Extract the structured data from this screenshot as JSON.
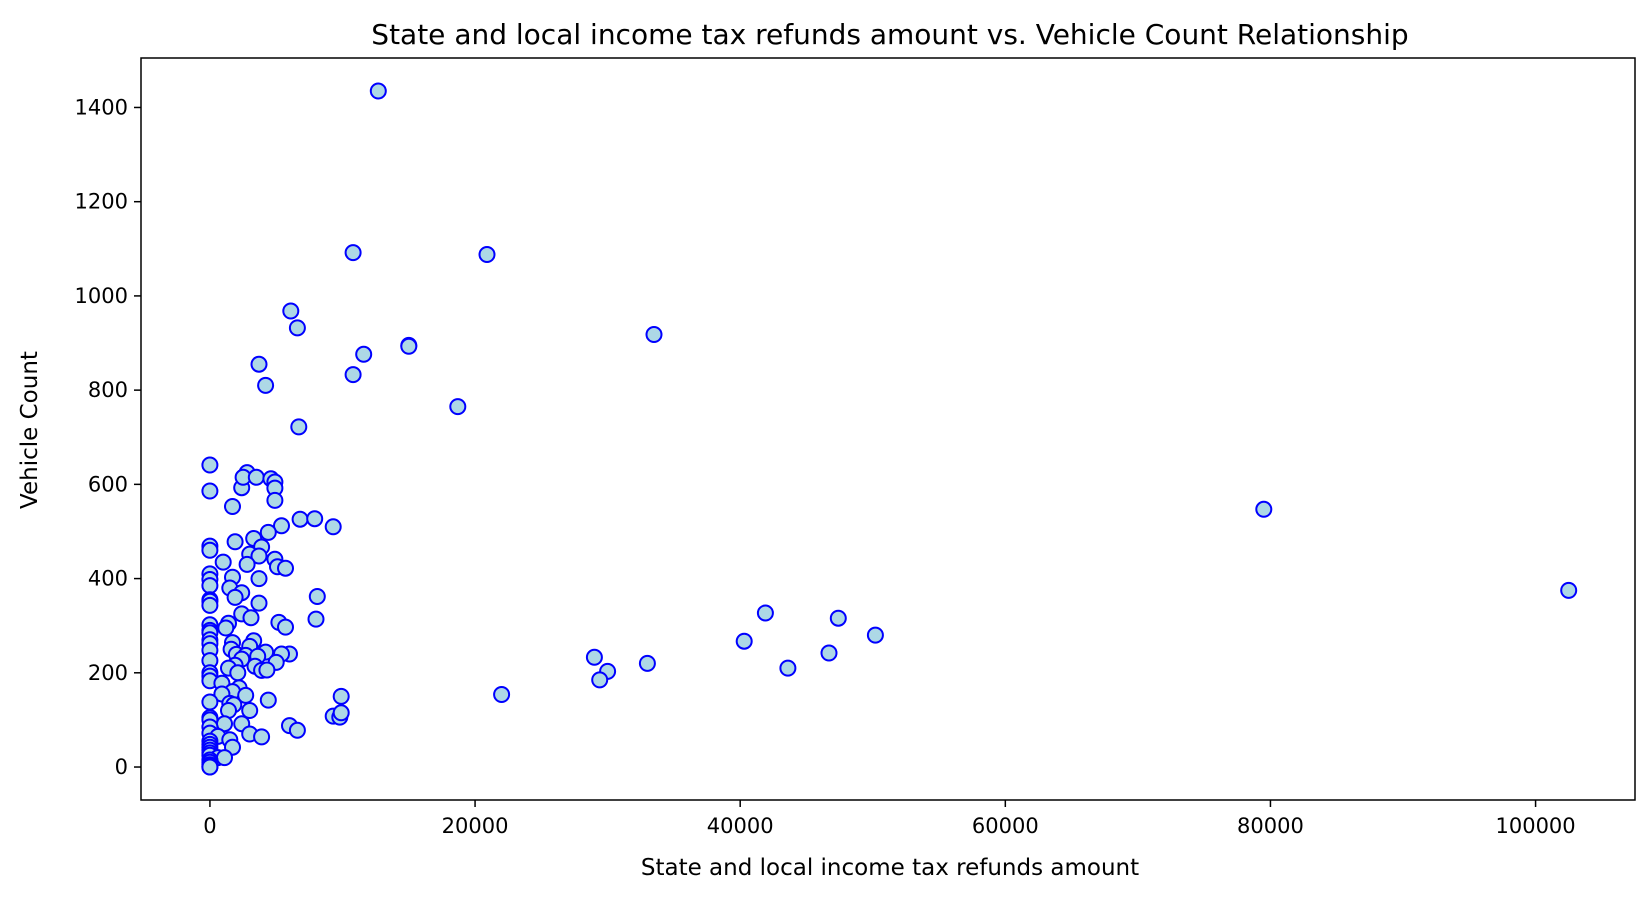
{
  "chart_data": {
    "type": "scatter",
    "title": "State and local income tax refunds amount vs. Vehicle Count Relationship",
    "xlabel": "State and local income tax refunds amount",
    "ylabel": "Vehicle Count",
    "xlim": [
      -5200,
      107500
    ],
    "ylim": [
      -70,
      1505
    ],
    "xticks": [
      0,
      20000,
      40000,
      60000,
      80000,
      100000
    ],
    "yticks": [
      0,
      200,
      400,
      600,
      800,
      1000,
      1200,
      1400
    ],
    "grid": false,
    "legend": "none",
    "marker_fill": "#add8e6",
    "marker_edge": "#0000ff",
    "points": [
      [
        12700,
        1435
      ],
      [
        10800,
        1092
      ],
      [
        20900,
        1088
      ],
      [
        6100,
        968
      ],
      [
        6600,
        932
      ],
      [
        33500,
        918
      ],
      [
        15000,
        895
      ],
      [
        15000,
        893
      ],
      [
        11600,
        876
      ],
      [
        3700,
        855
      ],
      [
        10800,
        833
      ],
      [
        4200,
        810
      ],
      [
        18700,
        765
      ],
      [
        6700,
        722
      ],
      [
        0,
        641
      ],
      [
        2800,
        625
      ],
      [
        0,
        586
      ],
      [
        2400,
        593
      ],
      [
        2500,
        615
      ],
      [
        3500,
        615
      ],
      [
        4600,
        612
      ],
      [
        4900,
        605
      ],
      [
        4900,
        592
      ],
      [
        4900,
        566
      ],
      [
        1700,
        553
      ],
      [
        79500,
        547
      ],
      [
        6800,
        526
      ],
      [
        7900,
        527
      ],
      [
        5400,
        512
      ],
      [
        9300,
        510
      ],
      [
        4400,
        498
      ],
      [
        3300,
        485
      ],
      [
        1900,
        478
      ],
      [
        3900,
        467
      ],
      [
        0,
        469
      ],
      [
        0,
        460
      ],
      [
        3000,
        452
      ],
      [
        3700,
        448
      ],
      [
        4900,
        441
      ],
      [
        1000,
        435
      ],
      [
        2800,
        430
      ],
      [
        5100,
        425
      ],
      [
        5700,
        422
      ],
      [
        0,
        410
      ],
      [
        0,
        398
      ],
      [
        1700,
        403
      ],
      [
        3700,
        400
      ],
      [
        0,
        385
      ],
      [
        1500,
        380
      ],
      [
        2400,
        370
      ],
      [
        1900,
        360
      ],
      [
        8100,
        362
      ],
      [
        0,
        355
      ],
      [
        0,
        352
      ],
      [
        0,
        343
      ],
      [
        3700,
        348
      ],
      [
        102500,
        375
      ],
      [
        41900,
        327
      ],
      [
        2400,
        325
      ],
      [
        3100,
        317
      ],
      [
        8000,
        314
      ],
      [
        47400,
        316
      ],
      [
        5200,
        307
      ],
      [
        1400,
        305
      ],
      [
        0,
        302
      ],
      [
        5700,
        297
      ],
      [
        1200,
        295
      ],
      [
        0,
        290
      ],
      [
        0,
        285
      ],
      [
        50200,
        280
      ],
      [
        0,
        270
      ],
      [
        3300,
        268
      ],
      [
        40300,
        267
      ],
      [
        1700,
        264
      ],
      [
        0,
        262
      ],
      [
        3000,
        256
      ],
      [
        1600,
        250
      ],
      [
        0,
        248
      ],
      [
        4200,
        244
      ],
      [
        46700,
        242
      ],
      [
        6000,
        240
      ],
      [
        5400,
        240
      ],
      [
        2000,
        239
      ],
      [
        2700,
        237
      ],
      [
        3600,
        235
      ],
      [
        29000,
        233
      ],
      [
        2400,
        229
      ],
      [
        0,
        226
      ],
      [
        5000,
        222
      ],
      [
        33000,
        220
      ],
      [
        1900,
        216
      ],
      [
        3400,
        214
      ],
      [
        3900,
        205
      ],
      [
        4300,
        206
      ],
      [
        1400,
        210
      ],
      [
        43600,
        210
      ],
      [
        30000,
        203
      ],
      [
        2100,
        200
      ],
      [
        0,
        200
      ],
      [
        0,
        193
      ],
      [
        29400,
        185
      ],
      [
        0,
        183
      ],
      [
        900,
        178
      ],
      [
        2200,
        168
      ],
      [
        1700,
        160
      ],
      [
        22000,
        154
      ],
      [
        900,
        155
      ],
      [
        2700,
        152
      ],
      [
        9900,
        150
      ],
      [
        4400,
        142
      ],
      [
        0,
        138
      ],
      [
        1500,
        135
      ],
      [
        1800,
        132
      ],
      [
        1400,
        120
      ],
      [
        3000,
        120
      ],
      [
        9300,
        108
      ],
      [
        9800,
        106
      ],
      [
        9900,
        115
      ],
      [
        0,
        105
      ],
      [
        0,
        100
      ],
      [
        1100,
        92
      ],
      [
        2400,
        92
      ],
      [
        6000,
        88
      ],
      [
        0,
        85
      ],
      [
        6600,
        78
      ],
      [
        0,
        72
      ],
      [
        3000,
        70
      ],
      [
        3900,
        64
      ],
      [
        600,
        65
      ],
      [
        1500,
        58
      ],
      [
        0,
        55
      ],
      [
        0,
        48
      ],
      [
        0,
        42
      ],
      [
        1700,
        42
      ],
      [
        0,
        36
      ],
      [
        0,
        30
      ],
      [
        0,
        25
      ],
      [
        600,
        20
      ],
      [
        1100,
        20
      ],
      [
        0,
        15
      ],
      [
        0,
        10
      ],
      [
        0,
        5
      ],
      [
        0,
        2
      ],
      [
        0,
        0
      ],
      [
        0,
        0
      ]
    ]
  }
}
